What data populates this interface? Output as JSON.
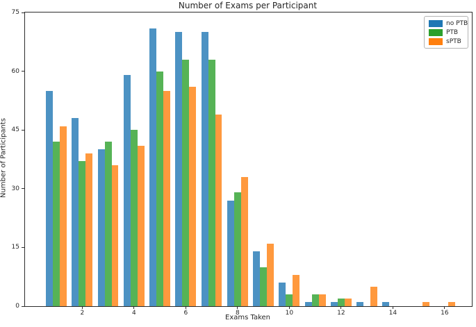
{
  "figure": {
    "title": "Number of Exams per Participant",
    "xlabel": "Exams Taken",
    "ylabel": "Number of Participants"
  },
  "chart_data": {
    "type": "bar",
    "title": "Number of Exams per Participant",
    "xlabel": "Exams Taken",
    "ylabel": "Number of Participants",
    "categories": [
      1,
      2,
      3,
      4,
      5,
      6,
      7,
      8,
      9,
      10,
      11,
      12,
      13,
      14,
      15,
      16
    ],
    "series": [
      {
        "name": "no PTB",
        "color": "#1f77b4",
        "values": [
          55,
          48,
          40,
          59,
          71,
          70,
          70,
          27,
          14,
          6,
          1,
          1,
          1,
          1,
          0,
          0
        ]
      },
      {
        "name": "PTB",
        "color": "#2ca02c",
        "values": [
          42,
          37,
          42,
          45,
          60,
          63,
          63,
          29,
          10,
          3,
          3,
          2,
          0,
          0,
          0,
          0
        ]
      },
      {
        "name": "sPTB",
        "color": "#ff7f0e",
        "values": [
          46,
          39,
          36,
          41,
          55,
          56,
          49,
          33,
          16,
          8,
          3,
          2,
          5,
          0,
          1,
          1
        ]
      }
    ],
    "ylim": [
      0,
      75
    ],
    "xlim": [
      -0.21,
      17.05
    ],
    "yticks": [
      0,
      15,
      30,
      45,
      60,
      75
    ],
    "xticks": [
      2,
      4,
      6,
      8,
      10,
      12,
      14,
      16
    ],
    "grid": false,
    "legend_position": "upper right",
    "bar_group_width": 0.8,
    "bar_alpha": 0.8
  }
}
